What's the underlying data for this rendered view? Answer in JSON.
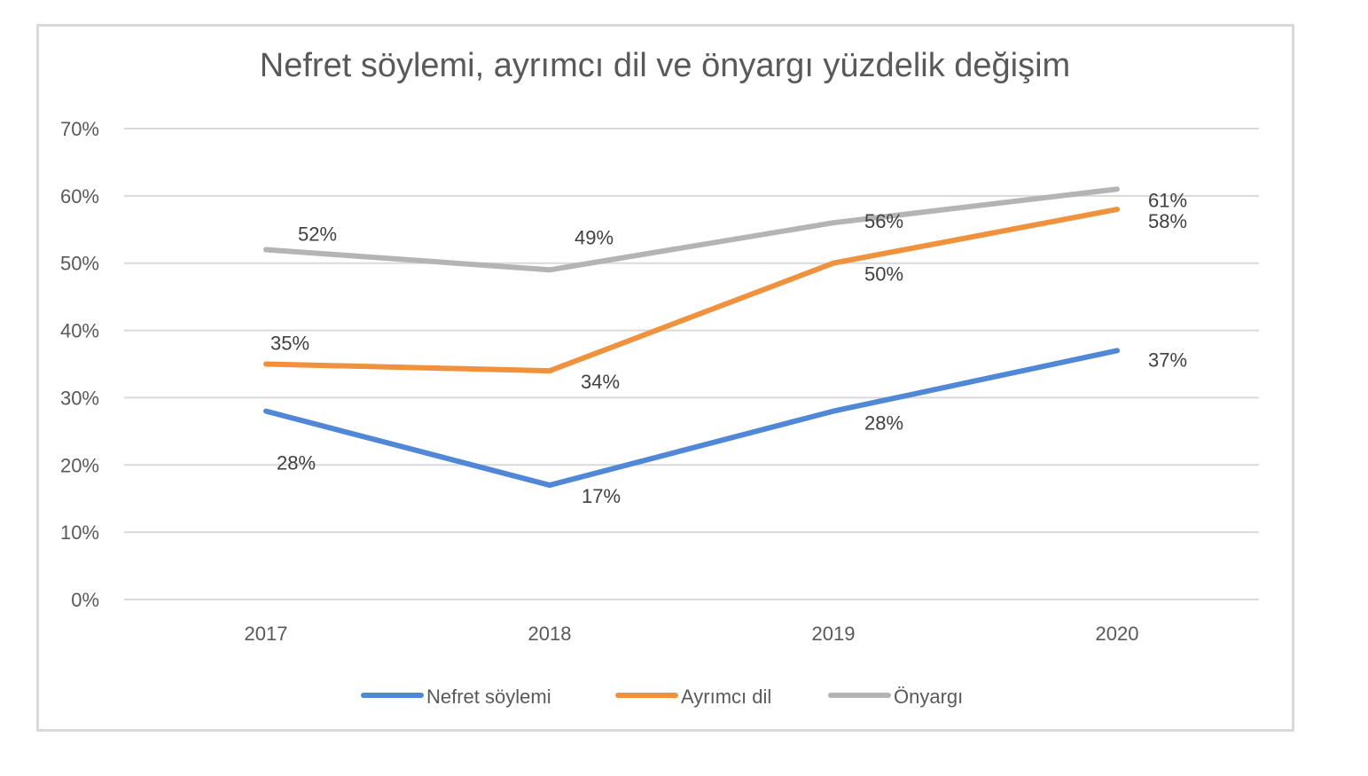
{
  "chart_data": {
    "type": "line",
    "title": "Nefret söylemi, ayrımcı dil ve önyargı yüzdelik değişim",
    "categories": [
      "2017",
      "2018",
      "2019",
      "2020"
    ],
    "series": [
      {
        "name": "Nefret söylemi",
        "values": [
          28,
          17,
          28,
          37
        ],
        "labels": [
          "28%",
          "17%",
          "28%",
          "37%"
        ],
        "color": "#5087d6"
      },
      {
        "name": "Ayrımcı dil",
        "values": [
          35,
          34,
          50,
          58
        ],
        "labels": [
          "35%",
          "34%",
          "50%",
          "58%"
        ],
        "color": "#f0913e"
      },
      {
        "name": "Önyargı",
        "values": [
          52,
          49,
          56,
          61
        ],
        "labels": [
          "52%",
          "49%",
          "56%",
          "61%"
        ],
        "color": "#b4b4b4"
      }
    ],
    "ylim": [
      0,
      70
    ],
    "yticks": [
      "0%",
      "10%",
      "20%",
      "30%",
      "40%",
      "50%",
      "60%",
      "70%"
    ],
    "xlabel": "",
    "ylabel": "",
    "grid": true,
    "legend": "bottom"
  }
}
